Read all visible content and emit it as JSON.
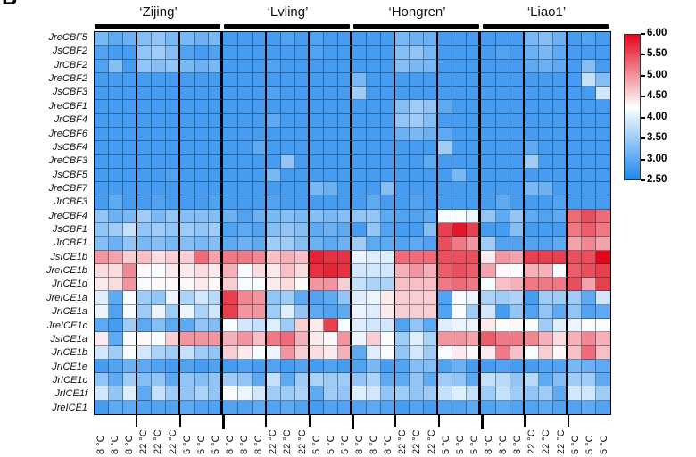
{
  "panel_label": "B",
  "groups": [
    {
      "label": "‘Zijing’"
    },
    {
      "label": "‘Lvling’"
    },
    {
      "label": "‘Hongren’"
    },
    {
      "label": "‘Liao1’"
    }
  ],
  "colorbar": {
    "ticks": [
      "6.00",
      "5.50",
      "5.00",
      "4.50",
      "4.00",
      "3.50",
      "3.00",
      "2.50"
    ],
    "min": 2.5,
    "max": 6.0,
    "midpoint": 4.25,
    "max_color": "#e2081c",
    "mid_color": "#ffffff",
    "min_color": "#1e88ed"
  },
  "chart_data": {
    "type": "heatmap",
    "title": "",
    "xlabel": "",
    "ylabel": "",
    "legend_position": "right",
    "grid": true,
    "column_groups": [
      {
        "name": "‘Zijing’",
        "span": 9
      },
      {
        "name": "‘Lvling’",
        "span": 9
      },
      {
        "name": "‘Hongren’",
        "span": 9
      },
      {
        "name": "‘Liao1’",
        "span": 9
      }
    ],
    "columns": [
      "8 °C",
      "8 °C",
      "8 °C",
      "22 °C",
      "22 °C",
      "22 °C",
      "5 °C",
      "5 °C",
      "5 °C",
      "8 °C",
      "8 °C",
      "8 °C",
      "22 °C",
      "22 °C",
      "22 °C",
      "5 °C",
      "5 °C",
      "5 °C",
      "8 °C",
      "8 °C",
      "8 °C",
      "22 °C",
      "22 °C",
      "22 °C",
      "5 °C",
      "5 °C",
      "5 °C",
      "8 °C",
      "8 °C",
      "8 °C",
      "22 °C",
      "22 °C",
      "22 °C",
      "5 °C",
      "5 °C",
      "5 °C"
    ],
    "rows": [
      "JreCBF5",
      "JsCBF2",
      "JrCBF2",
      "JreCBF2",
      "JsCBF3",
      "JreCBF1",
      "JrCBF4",
      "JreCBF6",
      "JsCBF4",
      "JreCBF3",
      "JsCBF5",
      "JreCBF7",
      "JrCBF3",
      "JreCBF4",
      "JsCBF1",
      "JrCBF1",
      "JsICE1b",
      "JreICE1b",
      "JrICE1d",
      "JreICE1a",
      "JrICE1a",
      "JreICE1c",
      "JsICE1a",
      "JrICE1b",
      "JrICE1e",
      "JrICE1c",
      "JrICE1f",
      "JreICE1"
    ],
    "values": [
      [
        3.2,
        3.0,
        3.1,
        3.3,
        3.4,
        3.2,
        3.2,
        3.1,
        3.2,
        2.8,
        2.8,
        2.8,
        2.8,
        2.9,
        2.8,
        2.9,
        2.8,
        2.8,
        2.8,
        2.8,
        2.8,
        3.2,
        3.1,
        3.1,
        2.8,
        2.8,
        2.8,
        2.8,
        2.8,
        2.8,
        3.2,
        3.3,
        3.1,
        2.8,
        2.9,
        2.8
      ],
      [
        2.9,
        2.8,
        2.8,
        3.4,
        3.5,
        3.3,
        2.9,
        2.8,
        2.9,
        2.8,
        2.8,
        2.8,
        2.8,
        2.8,
        2.8,
        2.9,
        2.8,
        2.8,
        2.8,
        2.8,
        2.8,
        3.3,
        3.4,
        3.2,
        2.8,
        2.8,
        2.8,
        2.8,
        2.9,
        2.8,
        3.1,
        3.2,
        3.0,
        2.8,
        2.8,
        2.8
      ],
      [
        2.9,
        3.3,
        2.8,
        3.4,
        3.3,
        3.4,
        3.2,
        3.1,
        3.2,
        2.8,
        2.8,
        2.8,
        2.9,
        2.8,
        2.8,
        2.8,
        2.8,
        2.8,
        2.8,
        2.8,
        2.8,
        3.3,
        3.2,
        3.2,
        2.8,
        2.8,
        2.8,
        2.8,
        2.8,
        2.8,
        3.0,
        3.1,
        3.0,
        2.8,
        3.3,
        2.8
      ],
      [
        2.8,
        2.8,
        2.8,
        2.8,
        2.8,
        2.8,
        2.8,
        2.8,
        2.8,
        2.8,
        2.8,
        2.8,
        2.8,
        2.8,
        2.8,
        2.8,
        2.8,
        2.8,
        3.2,
        2.8,
        2.8,
        2.8,
        2.8,
        2.8,
        2.8,
        2.8,
        2.8,
        2.8,
        2.8,
        2.8,
        2.8,
        2.8,
        2.8,
        2.8,
        3.8,
        3.3
      ],
      [
        2.8,
        2.8,
        2.8,
        2.8,
        2.8,
        2.8,
        2.8,
        2.8,
        2.8,
        2.8,
        2.8,
        2.8,
        2.9,
        2.8,
        2.8,
        2.8,
        2.8,
        2.8,
        3.5,
        2.8,
        2.8,
        2.8,
        2.8,
        2.8,
        2.8,
        2.8,
        2.8,
        2.8,
        2.8,
        2.8,
        2.8,
        2.8,
        2.8,
        2.8,
        2.8,
        3.9
      ],
      [
        2.8,
        2.8,
        2.8,
        2.8,
        2.8,
        2.8,
        2.8,
        2.8,
        2.8,
        2.8,
        2.8,
        2.8,
        2.8,
        2.8,
        2.8,
        2.8,
        2.8,
        2.8,
        2.8,
        2.8,
        2.8,
        3.3,
        3.5,
        3.4,
        3.0,
        2.8,
        2.8,
        2.8,
        2.8,
        2.8,
        2.8,
        2.8,
        2.8,
        2.8,
        2.8,
        2.8
      ],
      [
        2.8,
        2.8,
        2.8,
        2.8,
        2.8,
        2.8,
        2.8,
        2.8,
        2.8,
        2.8,
        2.8,
        2.8,
        3.0,
        2.8,
        2.8,
        2.8,
        2.8,
        2.8,
        2.8,
        2.8,
        2.8,
        3.4,
        3.5,
        3.3,
        2.8,
        2.8,
        2.8,
        2.8,
        2.8,
        2.8,
        2.8,
        2.8,
        2.8,
        2.8,
        2.8,
        2.8
      ],
      [
        2.8,
        2.8,
        2.8,
        2.8,
        2.8,
        2.8,
        2.8,
        2.8,
        2.8,
        2.8,
        2.8,
        2.8,
        2.8,
        2.8,
        2.8,
        2.8,
        2.8,
        2.8,
        2.8,
        2.8,
        2.8,
        3.1,
        3.2,
        3.1,
        3.0,
        2.8,
        2.8,
        2.8,
        2.8,
        2.8,
        2.8,
        2.8,
        2.8,
        2.8,
        2.8,
        2.8
      ],
      [
        2.8,
        2.8,
        2.8,
        2.8,
        2.8,
        2.8,
        2.8,
        2.8,
        2.8,
        2.8,
        2.8,
        3.0,
        2.8,
        2.8,
        2.8,
        2.8,
        2.8,
        2.8,
        2.8,
        2.8,
        2.8,
        2.8,
        2.8,
        2.8,
        3.5,
        2.8,
        2.8,
        2.8,
        2.8,
        2.8,
        3.0,
        2.8,
        2.8,
        2.8,
        2.8,
        2.8
      ],
      [
        2.8,
        2.8,
        2.8,
        2.8,
        2.8,
        2.8,
        2.8,
        2.8,
        2.8,
        2.8,
        2.8,
        2.8,
        2.8,
        3.4,
        2.8,
        2.8,
        2.8,
        2.8,
        2.8,
        2.8,
        2.8,
        2.8,
        2.8,
        3.0,
        2.8,
        2.8,
        2.8,
        2.8,
        2.8,
        2.8,
        3.5,
        2.8,
        2.8,
        2.8,
        2.8,
        2.8
      ],
      [
        2.8,
        2.8,
        2.8,
        2.8,
        2.8,
        2.9,
        2.8,
        2.8,
        2.8,
        2.8,
        2.8,
        2.8,
        3.2,
        2.8,
        2.8,
        2.8,
        2.8,
        2.8,
        2.8,
        2.8,
        2.8,
        2.8,
        2.8,
        2.8,
        2.8,
        3.2,
        2.8,
        2.8,
        2.8,
        2.8,
        2.8,
        2.8,
        2.8,
        2.8,
        2.8,
        2.8
      ],
      [
        2.8,
        2.8,
        2.8,
        2.8,
        2.8,
        2.8,
        2.8,
        2.8,
        2.8,
        2.8,
        2.8,
        2.8,
        2.8,
        2.8,
        2.8,
        3.2,
        3.1,
        2.8,
        2.8,
        2.8,
        3.3,
        2.8,
        2.8,
        2.8,
        2.8,
        2.8,
        2.8,
        2.8,
        2.8,
        2.8,
        3.2,
        3.1,
        2.8,
        2.8,
        2.8,
        2.8
      ],
      [
        2.8,
        3.0,
        2.8,
        2.8,
        2.9,
        2.8,
        2.8,
        2.8,
        2.9,
        2.8,
        2.8,
        2.8,
        2.9,
        2.8,
        2.8,
        2.8,
        2.8,
        2.8,
        2.8,
        3.0,
        2.8,
        2.8,
        2.9,
        2.8,
        2.8,
        2.8,
        2.8,
        2.8,
        3.0,
        2.8,
        2.8,
        2.8,
        2.9,
        2.8,
        2.8,
        2.8
      ],
      [
        3.4,
        3.1,
        3.2,
        3.5,
        3.2,
        3.4,
        3.3,
        3.3,
        3.3,
        3.1,
        2.9,
        3.1,
        3.2,
        3.3,
        3.2,
        3.3,
        3.2,
        3.3,
        3.4,
        3.4,
        3.0,
        2.9,
        2.9,
        3.0,
        4.2,
        4.2,
        4.1,
        3.4,
        3.0,
        3.4,
        3.0,
        2.9,
        3.0,
        5.3,
        5.5,
        5.3
      ],
      [
        3.4,
        3.5,
        3.8,
        3.4,
        3.5,
        3.4,
        3.5,
        3.4,
        3.5,
        2.9,
        3.0,
        2.9,
        3.3,
        3.4,
        3.3,
        3.0,
        3.1,
        3.0,
        2.8,
        3.4,
        2.9,
        2.8,
        2.8,
        3.3,
        5.6,
        5.9,
        5.6,
        2.8,
        2.8,
        3.3,
        2.8,
        2.8,
        2.8,
        5.2,
        5.4,
        5.2
      ],
      [
        3.3,
        3.1,
        3.4,
        3.2,
        3.3,
        3.2,
        3.3,
        3.2,
        3.3,
        3.0,
        3.1,
        3.0,
        3.5,
        3.5,
        3.3,
        3.1,
        3.0,
        3.1,
        3.5,
        3.0,
        3.0,
        2.9,
        3.0,
        2.9,
        5.5,
        5.2,
        5.0,
        3.5,
        2.9,
        2.9,
        2.9,
        2.9,
        3.0,
        4.9,
        5.1,
        4.9
      ],
      [
        5.0,
        4.9,
        4.6,
        4.7,
        4.5,
        4.6,
        4.6,
        5.3,
        4.9,
        5.2,
        5.2,
        5.1,
        4.7,
        4.8,
        4.7,
        5.8,
        5.7,
        5.7,
        4.1,
        4.0,
        4.0,
        5.3,
        5.3,
        5.3,
        5.5,
        5.5,
        5.5,
        4.4,
        5.0,
        4.9,
        5.6,
        5.6,
        5.6,
        5.5,
        5.5,
        6.0
      ],
      [
        4.5,
        4.5,
        5.1,
        4.3,
        4.2,
        4.4,
        4.4,
        4.5,
        4.4,
        4.8,
        4.2,
        4.5,
        4.4,
        4.7,
        4.5,
        5.7,
        5.8,
        5.7,
        3.9,
        3.9,
        3.9,
        4.8,
        5.0,
        4.8,
        5.4,
        5.5,
        5.4,
        4.9,
        4.3,
        4.2,
        4.8,
        4.8,
        4.2,
        5.4,
        5.5,
        5.6
      ],
      [
        4.4,
        4.5,
        5.0,
        4.2,
        4.3,
        4.3,
        4.3,
        4.4,
        4.3,
        4.6,
        4.2,
        4.2,
        4.4,
        4.5,
        4.3,
        5.0,
        5.0,
        4.6,
        3.8,
        3.6,
        3.6,
        4.7,
        4.7,
        4.7,
        5.2,
        5.3,
        5.2,
        4.2,
        4.7,
        4.8,
        5.2,
        5.2,
        5.2,
        5.5,
        4.9,
        5.6
      ],
      [
        4.0,
        3.0,
        4.2,
        3.5,
        3.4,
        4.1,
        3.6,
        3.9,
        3.7,
        5.6,
        5.1,
        5.0,
        3.4,
        3.5,
        3.0,
        2.9,
        3.0,
        3.4,
        4.0,
        4.1,
        4.4,
        4.6,
        4.6,
        4.6,
        2.9,
        4.2,
        4.1,
        3.6,
        3.5,
        3.6,
        2.8,
        3.5,
        3.5,
        3.5,
        3.0,
        3.9
      ],
      [
        4.1,
        2.9,
        4.2,
        3.5,
        4.1,
        3.5,
        4.1,
        3.6,
        3.9,
        5.6,
        5.0,
        5.0,
        3.5,
        4.0,
        3.4,
        3.0,
        2.9,
        3.0,
        4.1,
        4.0,
        4.4,
        4.6,
        4.6,
        4.6,
        2.9,
        4.2,
        3.5,
        3.9,
        2.8,
        3.4,
        2.9,
        3.4,
        3.0,
        3.4,
        2.9,
        3.0
      ],
      [
        3.0,
        2.8,
        3.5,
        3.0,
        3.3,
        3.0,
        3.0,
        3.4,
        3.3,
        4.2,
        3.9,
        3.8,
        4.0,
        3.5,
        4.6,
        4.4,
        5.6,
        4.2,
        4.0,
        3.9,
        3.9,
        2.9,
        3.4,
        3.0,
        4.0,
        4.1,
        4.1,
        4.4,
        4.2,
        4.3,
        4.2,
        3.5,
        4.0,
        4.1,
        4.2,
        4.2
      ],
      [
        4.4,
        3.0,
        4.2,
        4.3,
        4.2,
        4.6,
        5.0,
        5.0,
        5.0,
        4.8,
        5.0,
        4.7,
        5.2,
        5.3,
        4.8,
        4.4,
        4.3,
        5.0,
        4.1,
        4.6,
        4.2,
        3.5,
        4.0,
        3.6,
        5.0,
        5.0,
        4.9,
        5.4,
        5.2,
        5.2,
        5.1,
        4.8,
        4.5,
        4.8,
        5.1,
        4.8
      ],
      [
        3.9,
        3.5,
        4.2,
        3.9,
        3.6,
        3.5,
        3.8,
        3.5,
        3.4,
        4.6,
        4.4,
        4.2,
        4.1,
        5.0,
        4.6,
        4.5,
        4.4,
        4.8,
        3.0,
        4.0,
        4.2,
        3.4,
        3.9,
        3.5,
        4.2,
        4.4,
        4.3,
        4.4,
        5.2,
        4.7,
        4.2,
        4.6,
        4.3,
        4.7,
        5.3,
        4.7
      ],
      [
        2.8,
        2.9,
        3.1,
        3.0,
        2.9,
        2.8,
        2.9,
        2.8,
        2.9,
        2.8,
        2.9,
        2.8,
        2.9,
        2.8,
        2.9,
        2.8,
        2.9,
        2.8,
        2.9,
        3.2,
        2.8,
        2.9,
        3.3,
        3.3,
        2.9,
        3.1,
        2.8,
        2.8,
        2.9,
        2.8,
        2.8,
        2.9,
        2.9,
        3.2,
        3.1,
        3.0
      ],
      [
        3.4,
        3.0,
        3.5,
        3.3,
        3.4,
        3.0,
        3.4,
        3.3,
        3.4,
        3.5,
        3.4,
        3.0,
        3.8,
        3.0,
        3.5,
        3.6,
        3.5,
        3.5,
        3.4,
        3.6,
        3.0,
        3.0,
        3.4,
        3.0,
        3.5,
        3.4,
        3.0,
        3.8,
        3.7,
        3.4,
        3.7,
        3.0,
        3.3,
        3.5,
        3.5,
        3.0
      ],
      [
        3.9,
        3.4,
        4.0,
        3.0,
        3.8,
        3.5,
        3.4,
        3.6,
        3.4,
        4.2,
        4.1,
        3.9,
        3.5,
        3.5,
        3.6,
        3.0,
        3.5,
        3.4,
        4.0,
        3.9,
        3.4,
        3.5,
        3.4,
        3.5,
        3.8,
        4.0,
        3.8,
        3.5,
        3.8,
        3.5,
        3.4,
        3.5,
        3.0,
        3.9,
        3.9,
        3.5
      ],
      [
        2.8,
        3.0,
        3.0,
        2.9,
        2.9,
        2.9,
        3.0,
        2.9,
        2.9,
        2.9,
        2.9,
        3.0,
        2.9,
        3.0,
        2.9,
        2.8,
        2.9,
        2.9,
        2.9,
        3.0,
        2.9,
        2.8,
        2.9,
        2.8,
        2.9,
        2.9,
        3.0,
        2.9,
        3.0,
        2.9,
        2.9,
        3.0,
        2.9,
        2.9,
        3.0,
        2.9
      ]
    ]
  }
}
